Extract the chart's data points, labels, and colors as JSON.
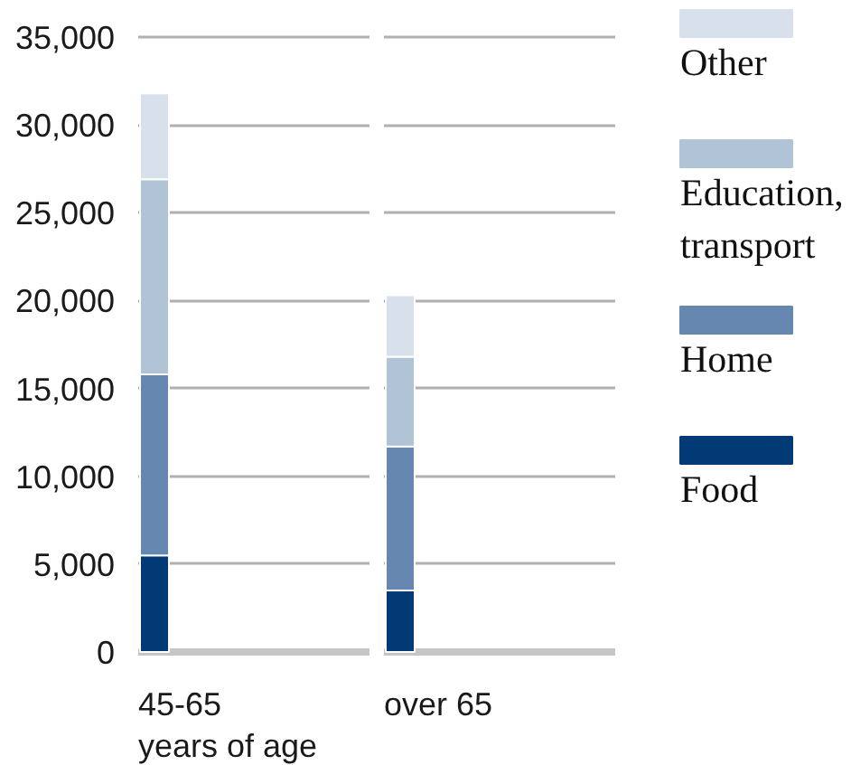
{
  "chart_data": {
    "type": "bar",
    "stacked": true,
    "categories": [
      "45-65\nyears of age",
      "over 65"
    ],
    "series": [
      {
        "name": "Food",
        "color": "#023a76",
        "values": [
          5500,
          3500
        ]
      },
      {
        "name": "Home",
        "color": "#6688b0",
        "values": [
          10300,
          8200
        ]
      },
      {
        "name": "Education,\ntransport",
        "color": "#b1c3d6",
        "values": [
          11100,
          5100
        ]
      },
      {
        "name": "Other",
        "color": "#d8e1eb",
        "values": [
          4900,
          3500
        ]
      }
    ],
    "ylim": [
      0,
      35000
    ],
    "yticks": [
      0,
      {
        "value": 5000,
        "label": "5,000"
      },
      {
        "value": 10000,
        "label": "10,000"
      },
      {
        "value": 15000,
        "label": "15,000"
      },
      {
        "value": 20000,
        "label": "20,000"
      },
      {
        "value": 25000,
        "label": "25,000"
      },
      {
        "value": 30000,
        "label": "30,000"
      },
      {
        "value": 35000,
        "label": "35,000"
      }
    ],
    "grid": "y",
    "legend": "right"
  }
}
